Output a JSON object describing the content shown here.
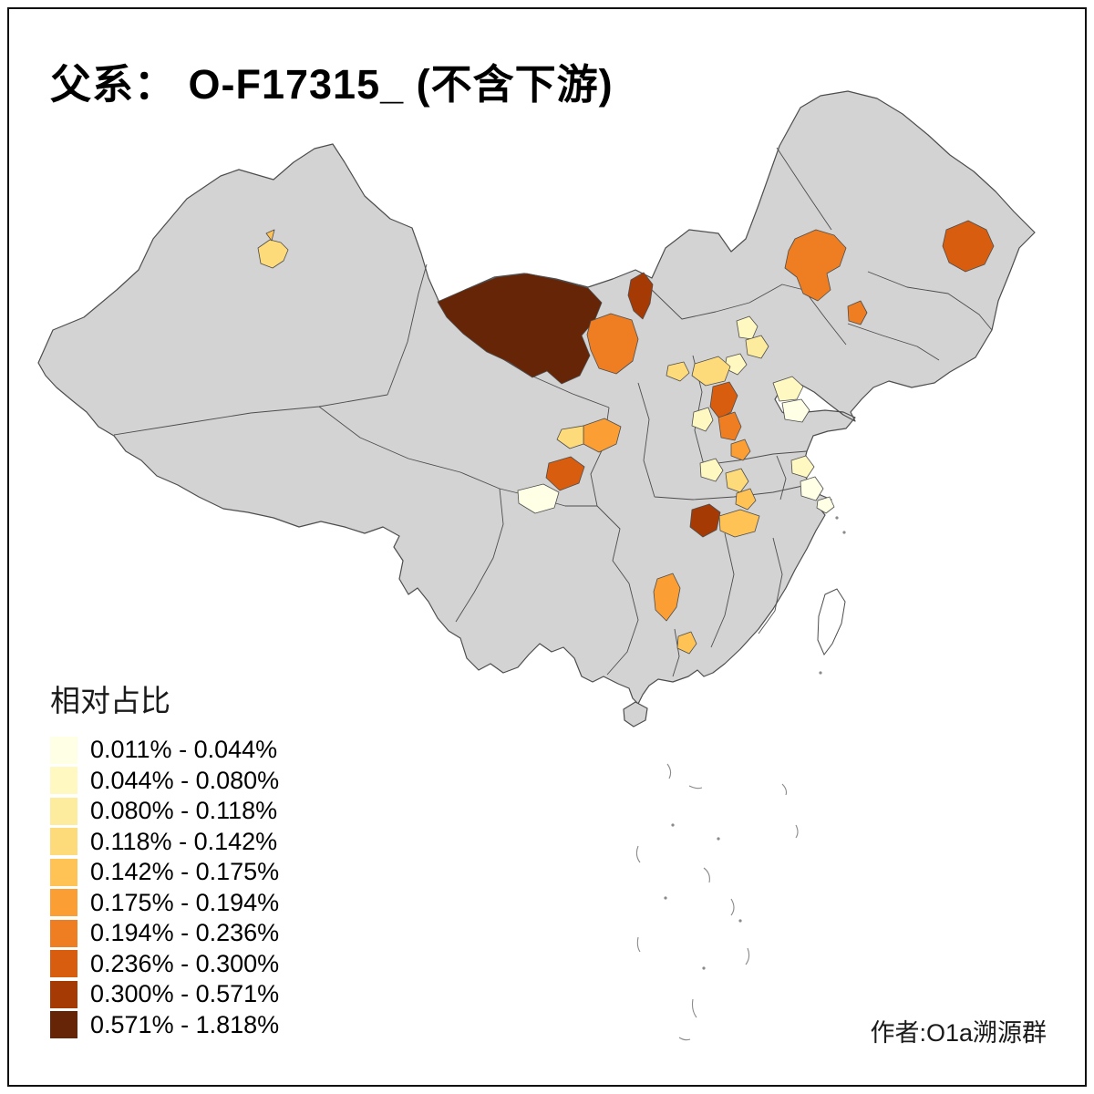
{
  "title": "父系： O-F17315_ (不含下游)",
  "attribution": "作者:O1a溯源群",
  "legend": {
    "title": "相对占比",
    "classes": [
      {
        "label": "0.011% - 0.044%",
        "color": "#FFFFE5"
      },
      {
        "label": "0.044% - 0.080%",
        "color": "#FFF8C1"
      },
      {
        "label": "0.080% - 0.118%",
        "color": "#FEEC9E"
      },
      {
        "label": "0.118% - 0.142%",
        "color": "#FEDB7A"
      },
      {
        "label": "0.142% - 0.175%",
        "color": "#FEC255"
      },
      {
        "label": "0.175% - 0.194%",
        "color": "#FB9F35"
      },
      {
        "label": "0.194% - 0.236%",
        "color": "#EF7E22"
      },
      {
        "label": "0.236% - 0.300%",
        "color": "#D95D0E"
      },
      {
        "label": "0.300% - 0.571%",
        "color": "#A63A05"
      },
      {
        "label": "0.571% - 1.818%",
        "color": "#662506"
      }
    ]
  },
  "map": {
    "base_fill": "#D3D3D3",
    "stroke": "#4D4D4D",
    "background": "#FFFFFF",
    "regions": [
      {
        "id": "xinjiang-blob",
        "class_index": 3
      },
      {
        "id": "xinjiang-small",
        "class_index": 4
      },
      {
        "id": "inner-mongolia-west",
        "class_index": 9
      },
      {
        "id": "ordos",
        "class_index": 6
      },
      {
        "id": "north-border-small",
        "class_index": 8
      },
      {
        "id": "northeast-tongliao",
        "class_index": 6
      },
      {
        "id": "heilongjiang-east",
        "class_index": 7
      },
      {
        "id": "liaoning-small",
        "class_index": 6
      },
      {
        "id": "beijing-a",
        "class_index": 1
      },
      {
        "id": "beijing-b",
        "class_index": 2
      },
      {
        "id": "beijing-c",
        "class_index": 1
      },
      {
        "id": "hebei-west-light",
        "class_index": 3
      },
      {
        "id": "hebei-central",
        "class_index": 3
      },
      {
        "id": "hebei-south-dark",
        "class_index": 7
      },
      {
        "id": "hebei-south-mid",
        "class_index": 6
      },
      {
        "id": "henan-north-small",
        "class_index": 5
      },
      {
        "id": "shanxi-light",
        "class_index": 1
      },
      {
        "id": "shandong-a",
        "class_index": 1
      },
      {
        "id": "shandong-b",
        "class_index": 0
      },
      {
        "id": "gansu-east",
        "class_index": 5
      },
      {
        "id": "gansu-east-light",
        "class_index": 3
      },
      {
        "id": "tianshui",
        "class_index": 7
      },
      {
        "id": "chengdu",
        "class_index": 0
      },
      {
        "id": "henan-a",
        "class_index": 1
      },
      {
        "id": "henan-b",
        "class_index": 3
      },
      {
        "id": "henan-c",
        "class_index": 4
      },
      {
        "id": "hubei-dark",
        "class_index": 8
      },
      {
        "id": "hubei-orange",
        "class_index": 4
      },
      {
        "id": "jiangsu-a",
        "class_index": 1
      },
      {
        "id": "jiangsu-b",
        "class_index": 0
      },
      {
        "id": "shanghai-small",
        "class_index": 0
      },
      {
        "id": "guizhou",
        "class_index": 5
      },
      {
        "id": "guangxi-small",
        "class_index": 4
      }
    ]
  }
}
